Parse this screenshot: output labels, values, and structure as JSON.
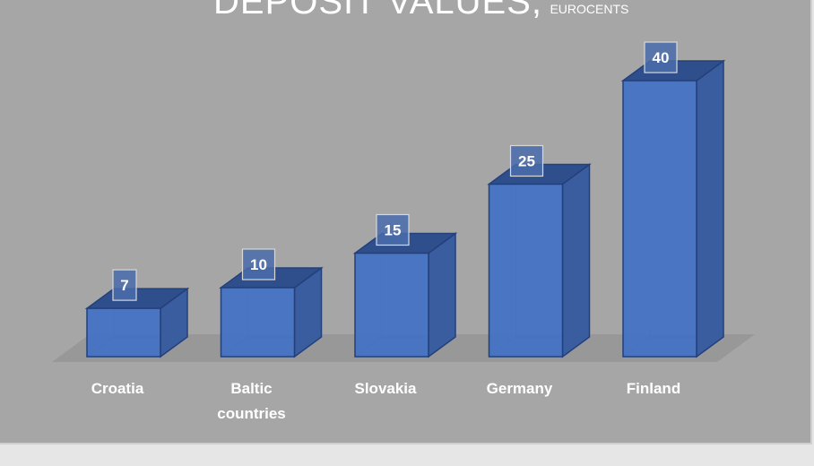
{
  "chart_data": {
    "type": "bar",
    "title": "DEPOSIT VALUES,",
    "subtitle": "EUROCENTS",
    "categories": [
      "Croatia",
      "Baltic countries",
      "Slovakia",
      "Germany",
      "Finland"
    ],
    "category_lines": [
      [
        "Croatia"
      ],
      [
        "Baltic",
        "countries"
      ],
      [
        "Slovakia"
      ],
      [
        "Germany"
      ],
      [
        "Finland"
      ]
    ],
    "values": [
      7,
      10,
      15,
      25,
      40
    ],
    "ylim": [
      0,
      40
    ],
    "grid": false,
    "bar_color": "#4472c4",
    "background_color": "#a6a6a6"
  }
}
